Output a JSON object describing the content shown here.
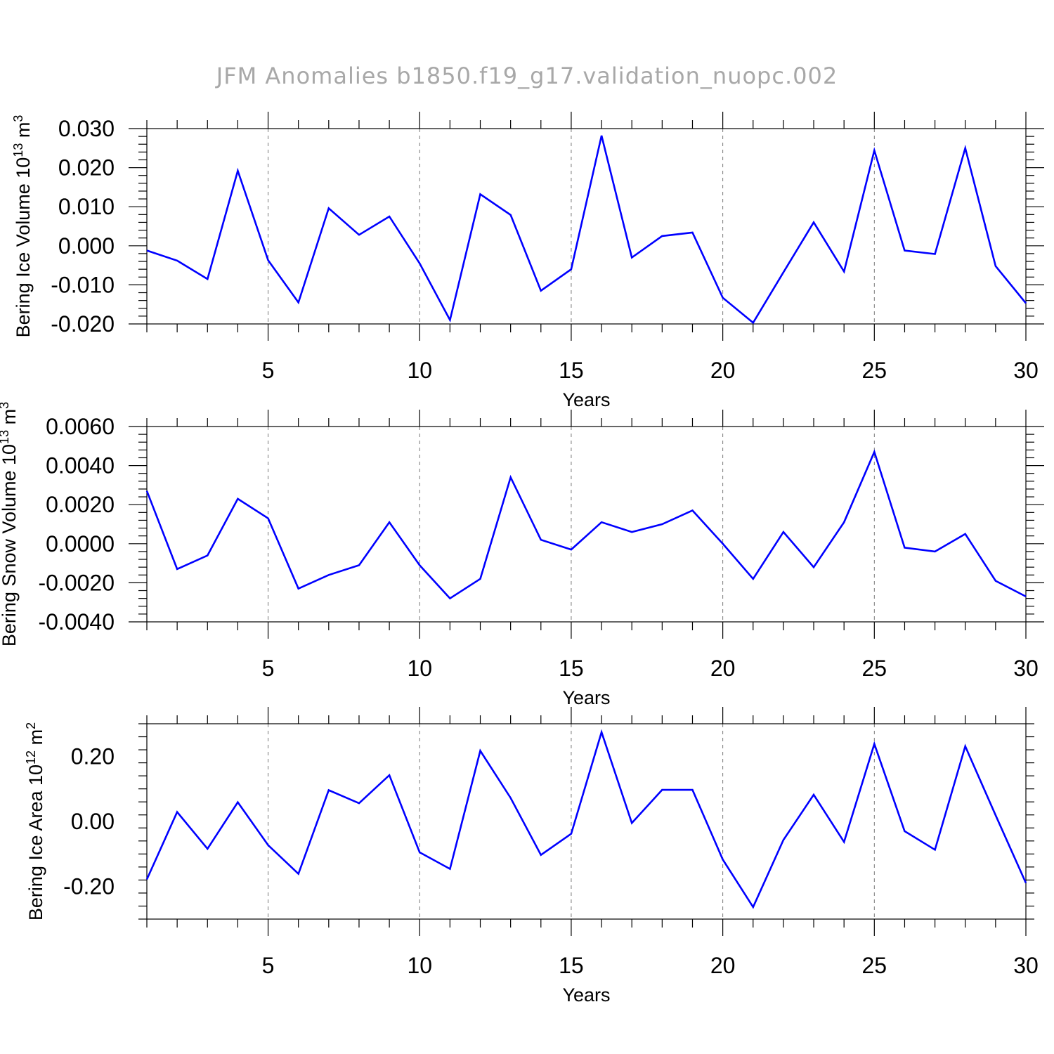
{
  "title": "JFM Anomalies b1850.f19_g17.validation_nuopc.002",
  "colors": {
    "series": "#0000ff",
    "title": "#a8a8a8",
    "grid": "#777777"
  },
  "chart_data": [
    {
      "type": "line",
      "title": "",
      "xlabel": "Years",
      "ylabel": {
        "base": "Bering Ice Volume 10",
        "exp": "13",
        "unit": " m",
        "unit_exp": "3"
      },
      "xlim": [
        1,
        30
      ],
      "ylim": [
        -0.02,
        0.03
      ],
      "x_ticks": [
        5,
        10,
        15,
        20,
        25,
        30
      ],
      "y_ticks": [
        -0.02,
        -0.01,
        0.0,
        0.01,
        0.02,
        0.03
      ],
      "y_tick_labels": [
        "-0.020",
        "-0.010",
        "0.000",
        "0.010",
        "0.020",
        "0.030"
      ],
      "grid": "dashed vertical lines at major x ticks",
      "x": [
        1,
        2,
        3,
        4,
        5,
        6,
        7,
        8,
        9,
        10,
        11,
        12,
        13,
        14,
        15,
        16,
        17,
        18,
        19,
        20,
        21,
        22,
        23,
        24,
        25,
        26,
        27,
        28,
        29,
        30
      ],
      "series": [
        {
          "values": [
            -0.0012,
            -0.0038,
            -0.0085,
            0.0192,
            -0.0037,
            -0.0145,
            0.0096,
            0.0028,
            0.0075,
            -0.0045,
            -0.019,
            0.0132,
            0.0079,
            -0.0115,
            -0.006,
            0.0282,
            -0.003,
            0.0025,
            0.0034,
            -0.0133,
            -0.0197,
            -0.0068,
            0.006,
            -0.0066,
            0.0244,
            -0.0012,
            -0.0021,
            0.025,
            -0.0052,
            -0.0147
          ]
        }
      ]
    },
    {
      "type": "line",
      "title": "",
      "xlabel": "Years",
      "ylabel": {
        "base": "Bering Snow Volume 10",
        "exp": "13",
        "unit": " m",
        "unit_exp": "3"
      },
      "xlim": [
        1,
        30
      ],
      "ylim": [
        -0.004,
        0.006
      ],
      "x_ticks": [
        5,
        10,
        15,
        20,
        25,
        30
      ],
      "y_ticks": [
        -0.004,
        -0.002,
        0.0,
        0.002,
        0.004,
        0.006
      ],
      "y_tick_labels": [
        "-0.0040",
        "-0.0020",
        "0.0000",
        "0.0020",
        "0.0040",
        "0.0060"
      ],
      "grid": "dashed vertical lines at major x ticks",
      "x": [
        1,
        2,
        3,
        4,
        5,
        6,
        7,
        8,
        9,
        10,
        11,
        12,
        13,
        14,
        15,
        16,
        17,
        18,
        19,
        20,
        21,
        22,
        23,
        24,
        25,
        26,
        27,
        28,
        29,
        30
      ],
      "series": [
        {
          "values": [
            0.0027,
            -0.0013,
            -0.0006,
            0.0023,
            0.0013,
            -0.0023,
            -0.0016,
            -0.0011,
            0.0011,
            -0.0011,
            -0.0028,
            -0.0018,
            0.0034,
            0.0002,
            -0.0003,
            0.0011,
            0.0006,
            0.001,
            0.0017,
            0.0,
            -0.0018,
            0.0006,
            -0.0012,
            0.0011,
            0.0047,
            -0.0002,
            -0.0004,
            0.0005,
            -0.0019,
            -0.0027
          ]
        }
      ]
    },
    {
      "type": "line",
      "title": "",
      "xlabel": "Years",
      "ylabel": {
        "base": "Bering Ice Area 10",
        "exp": "12",
        "unit": " m",
        "unit_exp": "2"
      },
      "xlim": [
        1,
        30
      ],
      "ylim": [
        -0.3,
        0.3
      ],
      "x_ticks": [
        5,
        10,
        15,
        20,
        25,
        30
      ],
      "y_ticks": [
        -0.2,
        0.0,
        0.2
      ],
      "y_tick_labels": [
        "-0.20",
        "0.00",
        "0.20"
      ],
      "grid": "dashed vertical lines at major x ticks",
      "x": [
        1,
        2,
        3,
        4,
        5,
        6,
        7,
        8,
        9,
        10,
        11,
        12,
        13,
        14,
        15,
        16,
        17,
        18,
        19,
        20,
        21,
        22,
        23,
        24,
        25,
        26,
        27,
        28,
        29,
        30
      ],
      "series": [
        {
          "values": [
            -0.178,
            0.029,
            -0.084,
            0.059,
            -0.073,
            -0.161,
            0.096,
            0.056,
            0.142,
            -0.095,
            -0.146,
            0.217,
            0.072,
            -0.103,
            -0.038,
            0.274,
            -0.005,
            0.097,
            0.097,
            -0.117,
            -0.263,
            -0.057,
            0.082,
            -0.063,
            0.238,
            -0.03,
            -0.087,
            0.231,
            0.019,
            -0.189
          ]
        }
      ]
    }
  ]
}
